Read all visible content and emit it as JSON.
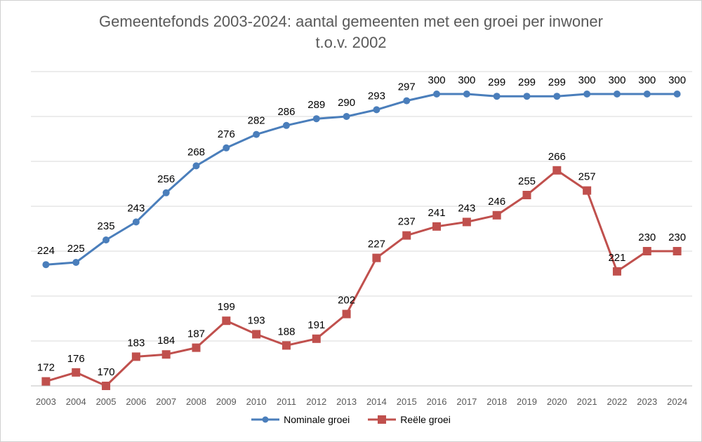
{
  "title_line1": "Gemeentefonds 2003-2024: aantal gemeenten met een groei per inwoner",
  "title_line2": "t.o.v. 2002",
  "colors": {
    "nominal": "#4a7ebb",
    "real": "#c0504d",
    "grid": "#d9d9d9",
    "text": "#595959"
  },
  "chart_data": {
    "type": "line",
    "title": "Gemeentefonds 2003-2024: aantal gemeenten met een groei per inwoner t.o.v. 2002",
    "categories": [
      "2003",
      "2004",
      "2005",
      "2006",
      "2007",
      "2008",
      "2009",
      "2010",
      "2011",
      "2012",
      "2013",
      "2014",
      "2015",
      "2016",
      "2017",
      "2018",
      "2019",
      "2020",
      "2021",
      "2022",
      "2023",
      "2024"
    ],
    "series": [
      {
        "name": "Nominale groei",
        "marker": "circle",
        "values": [
          224,
          225,
          235,
          243,
          256,
          268,
          276,
          282,
          286,
          289,
          290,
          293,
          297,
          300,
          300,
          299,
          299,
          299,
          300,
          300,
          300,
          300
        ]
      },
      {
        "name": "Reële groei",
        "marker": "square",
        "values": [
          172,
          176,
          170,
          183,
          184,
          187,
          199,
          193,
          188,
          191,
          202,
          227,
          237,
          241,
          243,
          246,
          255,
          266,
          257,
          221,
          230,
          230
        ]
      }
    ],
    "ylim": [
      170,
      310
    ],
    "grid": true,
    "legend": "bottom"
  }
}
